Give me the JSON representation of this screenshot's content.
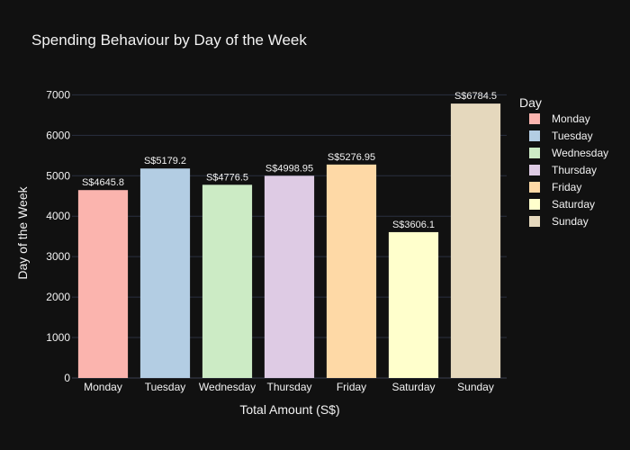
{
  "chart_data": {
    "type": "bar",
    "title": "Spending Behaviour by Day of the Week",
    "xlabel": "Total Amount (S$)",
    "ylabel": "Day of the Week",
    "categories": [
      "Monday",
      "Tuesday",
      "Wednesday",
      "Thursday",
      "Friday",
      "Saturday",
      "Sunday"
    ],
    "values": [
      4645.8,
      5179.2,
      4776.5,
      4998.95,
      5276.95,
      3606.1,
      6784.5
    ],
    "data_labels": [
      "S$4645.8",
      "S$5179.2",
      "S$4776.5",
      "S$4998.95",
      "S$5276.95",
      "S$3606.1",
      "S$6784.5"
    ],
    "colors": [
      "#fbb4ae",
      "#b3cde3",
      "#ccebc5",
      "#decbe4",
      "#fed9a6",
      "#ffffcc",
      "#e5d8bd"
    ],
    "ylim": [
      0,
      7000
    ],
    "yticks": [
      0,
      1000,
      2000,
      3000,
      4000,
      5000,
      6000,
      7000
    ],
    "grid": true,
    "legend_title": "Day",
    "legend_placement": "right"
  }
}
